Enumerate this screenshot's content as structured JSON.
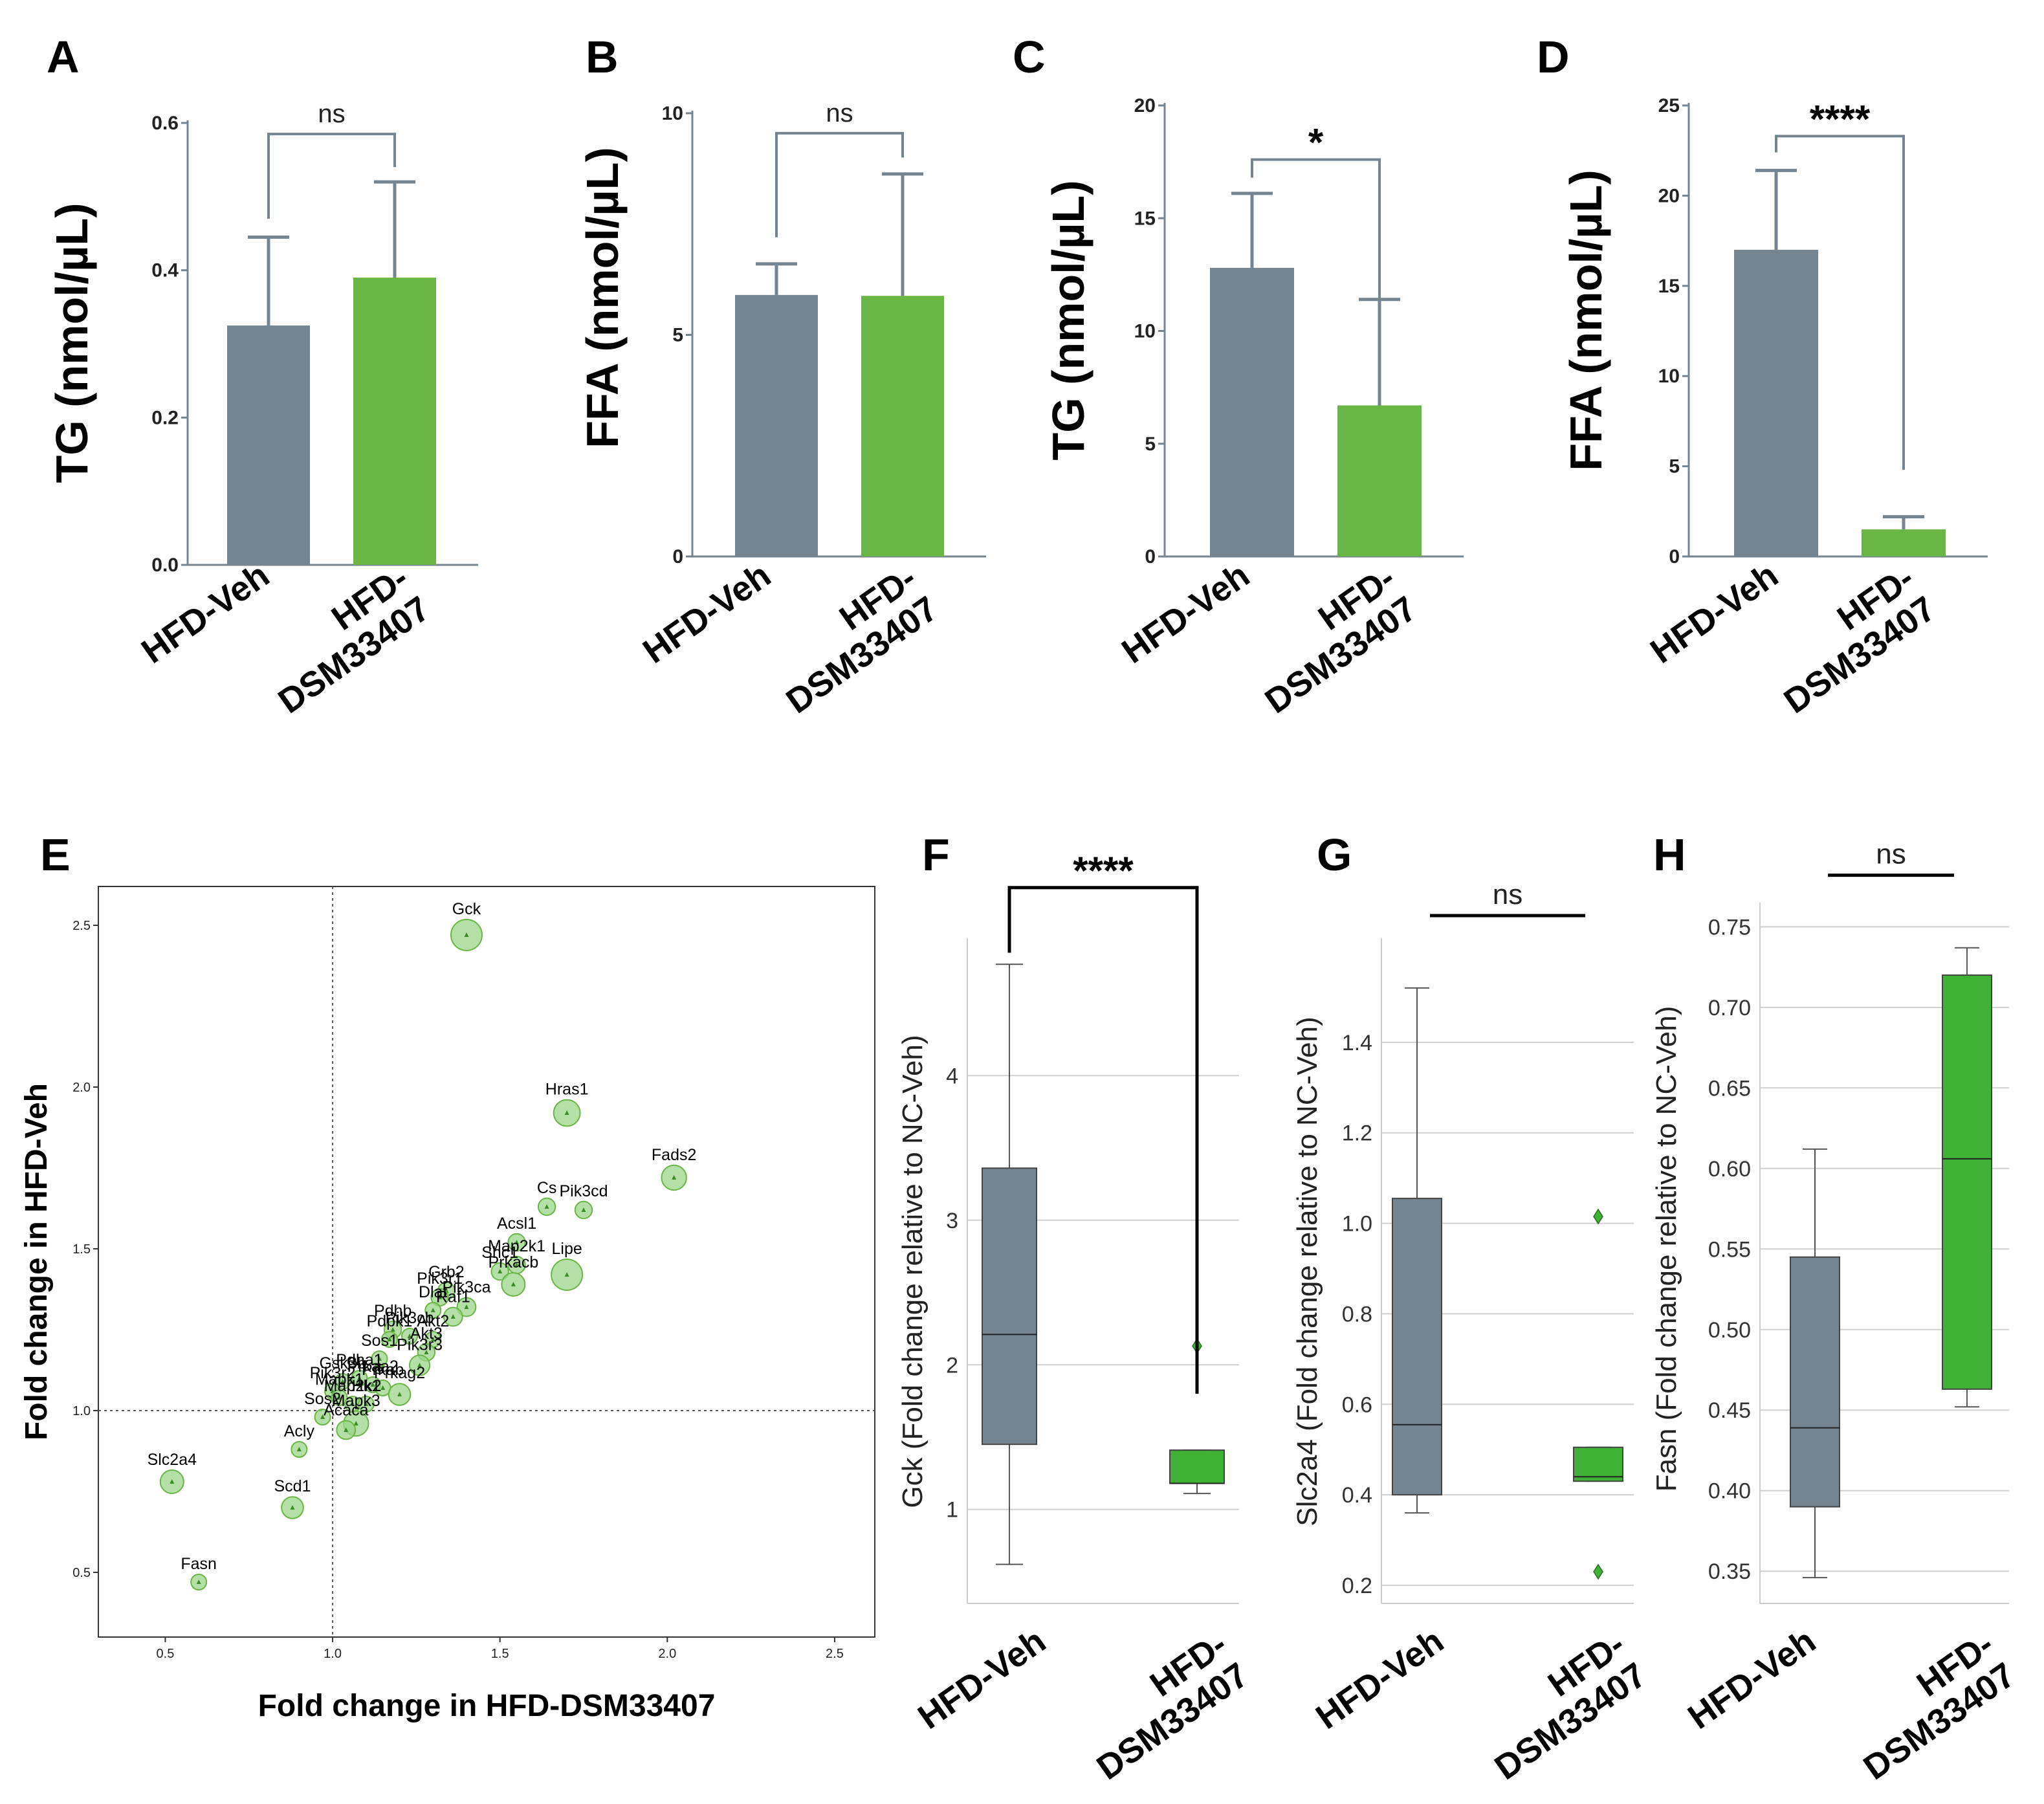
{
  "figure_colors": {
    "veh": "#748591",
    "dsm": "#6ab645",
    "dsm_box": "#3fb235",
    "error": "#748591",
    "grid": "#d0d0d0",
    "scatter_fill": "#9bd68a",
    "scatter_edge": "#6ab645"
  },
  "chart_data": [
    {
      "panel": "A",
      "type": "bar",
      "ylabel": "TG (nmol/µL)",
      "categories": [
        "HFD-Veh",
        "HFD-DSM33407"
      ],
      "category_lines": [
        [
          "HFD-Veh"
        ],
        [
          "HFD-",
          "DSM33407"
        ]
      ],
      "values": [
        0.325,
        0.39
      ],
      "errors": [
        0.12,
        0.13
      ],
      "ylim": [
        0,
        0.6
      ],
      "yticks": [
        0.0,
        0.2,
        0.4,
        0.6
      ],
      "ytick_labels": [
        "0.0",
        "0.2",
        "0.4",
        "0.6"
      ],
      "significance": "ns",
      "bracket_heights": [
        0.47,
        0.54
      ],
      "bracket_top": 0.585
    },
    {
      "panel": "B",
      "type": "bar",
      "ylabel": "FFA (nmol/µL)",
      "categories": [
        "HFD-Veh",
        "HFD-DSM33407"
      ],
      "category_lines": [
        [
          "HFD-Veh"
        ],
        [
          "HFD-",
          "DSM33407"
        ]
      ],
      "values": [
        5.9,
        5.88
      ],
      "errors": [
        0.7,
        2.75
      ],
      "ylim": [
        0,
        10
      ],
      "yticks": [
        0,
        5,
        10
      ],
      "ytick_labels": [
        "0",
        "5",
        "10"
      ],
      "significance": "ns",
      "bracket_heights": [
        7.2,
        9.0
      ],
      "bracket_top": 9.55
    },
    {
      "panel": "C",
      "type": "bar",
      "ylabel": "TG (nmol/µL)",
      "categories": [
        "HFD-Veh",
        "HFD-DSM33407"
      ],
      "category_lines": [
        [
          "HFD-Veh"
        ],
        [
          "HFD-",
          "DSM33407"
        ]
      ],
      "values": [
        12.8,
        6.7
      ],
      "errors": [
        3.3,
        4.7
      ],
      "ylim": [
        0,
        20
      ],
      "yticks": [
        0,
        5,
        10,
        15,
        20
      ],
      "ytick_labels": [
        "0",
        "5",
        "10",
        "15",
        "20"
      ],
      "significance": "*",
      "bracket_heights": [
        16.8,
        11.4
      ],
      "bracket_top": 17.6
    },
    {
      "panel": "D",
      "type": "bar",
      "ylabel": "FFA (nmol/µL)",
      "categories": [
        "HFD-Veh",
        "HFD-DSM33407"
      ],
      "category_lines": [
        [
          "HFD-Veh"
        ],
        [
          "HFD-",
          "DSM33407"
        ]
      ],
      "values": [
        17.0,
        1.5
      ],
      "errors": [
        4.4,
        0.7
      ],
      "ylim": [
        0,
        25
      ],
      "yticks": [
        0,
        5,
        10,
        15,
        20,
        25
      ],
      "ytick_labels": [
        "0",
        "5",
        "10",
        "15",
        "20",
        "25"
      ],
      "significance": "****",
      "bracket_heights": [
        22.4,
        4.8
      ],
      "bracket_top": 23.3
    },
    {
      "panel": "E",
      "type": "scatter",
      "xlabel": "Fold change in HFD-DSM33407",
      "ylabel": "Fold change in HFD-Veh",
      "xlim": [
        0.3,
        2.62
      ],
      "ylim": [
        0.3,
        2.62
      ],
      "xticks": [
        0.5,
        1.0,
        1.5,
        2.0,
        2.5
      ],
      "yticks": [
        0.5,
        1.0,
        1.5,
        2.0,
        2.5
      ],
      "tick_labels": [
        "0.5",
        "1.0",
        "1.5",
        "2.0",
        "2.5"
      ],
      "reference_lines": {
        "x": 1.0,
        "y": 1.0
      },
      "points": [
        {
          "label": "Gck",
          "x": 1.4,
          "y": 2.47,
          "size": 2.0
        },
        {
          "label": "Hras1",
          "x": 1.7,
          "y": 1.92,
          "size": 1.7
        },
        {
          "label": "Fads2",
          "x": 2.02,
          "y": 1.72,
          "size": 1.6
        },
        {
          "label": "Cs",
          "x": 1.64,
          "y": 1.63,
          "size": 1.1
        },
        {
          "label": "Pik3cd",
          "x": 1.75,
          "y": 1.62,
          "size": 1.1
        },
        {
          "label": "Acsl1",
          "x": 1.55,
          "y": 1.52,
          "size": 1.1
        },
        {
          "label": "Map2k1",
          "x": 1.55,
          "y": 1.45,
          "size": 1.1
        },
        {
          "label": "Shc1",
          "x": 1.5,
          "y": 1.43,
          "size": 1.1
        },
        {
          "label": "Lipe",
          "x": 1.7,
          "y": 1.42,
          "size": 2.0
        },
        {
          "label": "Grb2",
          "x": 1.34,
          "y": 1.37,
          "size": 1.1
        },
        {
          "label": "Prkacb",
          "x": 1.54,
          "y": 1.39,
          "size": 1.5
        },
        {
          "label": "Pik3ca",
          "x": 1.4,
          "y": 1.32,
          "size": 1.2
        },
        {
          "label": "Pik3r1",
          "x": 1.32,
          "y": 1.35,
          "size": 1.1
        },
        {
          "label": "Dlat",
          "x": 1.3,
          "y": 1.31,
          "size": 1.0
        },
        {
          "label": "Raf1",
          "x": 1.36,
          "y": 1.29,
          "size": 1.2
        },
        {
          "label": "Pdhb",
          "x": 1.18,
          "y": 1.25,
          "size": 1.1
        },
        {
          "label": "Pdpk1",
          "x": 1.17,
          "y": 1.22,
          "size": 1.0
        },
        {
          "label": "Pik3cb",
          "x": 1.23,
          "y": 1.23,
          "size": 1.0
        },
        {
          "label": "Akt2",
          "x": 1.3,
          "y": 1.22,
          "size": 1.0
        },
        {
          "label": "Akt3",
          "x": 1.28,
          "y": 1.18,
          "size": 1.1
        },
        {
          "label": "Sos1",
          "x": 1.14,
          "y": 1.16,
          "size": 1.0
        },
        {
          "label": "Pik3r3",
          "x": 1.26,
          "y": 1.14,
          "size": 1.3
        },
        {
          "label": "Gsk3b",
          "x": 1.03,
          "y": 1.09,
          "size": 1.0
        },
        {
          "label": "Pdha1",
          "x": 1.08,
          "y": 1.1,
          "size": 1.0
        },
        {
          "label": "Prkaa2",
          "x": 1.12,
          "y": 1.08,
          "size": 1.0
        },
        {
          "label": "Prkab",
          "x": 1.15,
          "y": 1.07,
          "size": 1.0
        },
        {
          "label": "Pik3r2",
          "x": 1.0,
          "y": 1.06,
          "size": 1.0
        },
        {
          "label": "Mapk1",
          "x": 1.02,
          "y": 1.04,
          "size": 1.0
        },
        {
          "label": "Prkag2",
          "x": 1.2,
          "y": 1.05,
          "size": 1.4
        },
        {
          "label": "Map2k2",
          "x": 1.06,
          "y": 1.02,
          "size": 1.0
        },
        {
          "label": "Hk1",
          "x": 1.1,
          "y": 1.02,
          "size": 1.0
        },
        {
          "label": "Mapk3",
          "x": 1.07,
          "y": 0.96,
          "size": 1.6
        },
        {
          "label": "Sos2",
          "x": 0.97,
          "y": 0.98,
          "size": 1.0
        },
        {
          "label": "Acaca",
          "x": 1.04,
          "y": 0.94,
          "size": 1.2
        },
        {
          "label": "Acly",
          "x": 0.9,
          "y": 0.88,
          "size": 1.0
        },
        {
          "label": "Slc2a4",
          "x": 0.52,
          "y": 0.78,
          "size": 1.5
        },
        {
          "label": "Scd1",
          "x": 0.88,
          "y": 0.7,
          "size": 1.4
        },
        {
          "label": "Fasn",
          "x": 0.6,
          "y": 0.47,
          "size": 1.0
        }
      ]
    },
    {
      "panel": "F",
      "type": "box",
      "ylabel": "Gck (Fold change relative to NC-Veh)",
      "categories": [
        "HFD-Veh",
        "HFD-DSM33407"
      ],
      "category_lines": [
        [
          "HFD-Veh"
        ],
        [
          "HFD-",
          "DSM33407"
        ]
      ],
      "ylim": [
        0.35,
        4.95
      ],
      "yticks": [
        1,
        2,
        3,
        4
      ],
      "ytick_labels": [
        "1",
        "2",
        "3",
        "4"
      ],
      "boxes": [
        {
          "min": 0.62,
          "q1": 1.45,
          "median": 2.21,
          "q3": 3.36,
          "max": 4.77,
          "outliers": []
        },
        {
          "min": 1.11,
          "q1": 1.18,
          "median": 1.18,
          "q3": 1.41,
          "max": 1.41,
          "outliers": [
            2.13
          ]
        }
      ],
      "significance": "****",
      "bracket_heights": [
        4.85,
        1.8
      ],
      "bracket_top": 5.3
    },
    {
      "panel": "G",
      "type": "box",
      "ylabel": "Slc2a4 (Fold change relative to NC-Veh)",
      "categories": [
        "HFD-Veh",
        "HFD-DSM33407"
      ],
      "category_lines": [
        [
          "HFD-Veh"
        ],
        [
          "HFD-",
          "DSM33407"
        ]
      ],
      "ylim": [
        0.16,
        1.63
      ],
      "yticks": [
        0.2,
        0.4,
        0.6,
        0.8,
        1.0,
        1.2,
        1.4
      ],
      "ytick_labels": [
        "0.2",
        "0.4",
        "0.6",
        "0.8",
        "1.0",
        "1.2",
        "1.4"
      ],
      "boxes": [
        {
          "min": 0.36,
          "q1": 0.4,
          "median": 0.555,
          "q3": 1.055,
          "max": 1.52,
          "outliers": []
        },
        {
          "min": 0.43,
          "q1": 0.43,
          "median": 0.44,
          "q3": 0.505,
          "max": 0.505,
          "outliers": [
            1.015,
            0.23
          ]
        }
      ],
      "significance": "ns",
      "bracket_heights": [],
      "bracket_top": 1.68
    },
    {
      "panel": "H",
      "type": "box",
      "ylabel": "Fasn (Fold change relative to NC-Veh)",
      "categories": [
        "HFD-Veh",
        "HFD-DSM33407"
      ],
      "category_lines": [
        [
          "HFD-Veh"
        ],
        [
          "HFD-",
          "DSM33407"
        ]
      ],
      "ylim": [
        0.33,
        0.765
      ],
      "yticks": [
        0.35,
        0.4,
        0.45,
        0.5,
        0.55,
        0.6,
        0.65,
        0.7,
        0.75
      ],
      "ytick_labels": [
        "0.35",
        "0.40",
        "0.45",
        "0.50",
        "0.55",
        "0.60",
        "0.65",
        "0.70",
        "0.75"
      ],
      "boxes": [
        {
          "min": 0.346,
          "q1": 0.39,
          "median": 0.439,
          "q3": 0.545,
          "max": 0.612,
          "outliers": []
        },
        {
          "min": 0.452,
          "q1": 0.463,
          "median": 0.606,
          "q3": 0.72,
          "max": 0.737,
          "outliers": []
        }
      ],
      "significance": "ns",
      "bracket_heights": [],
      "bracket_top": 0.782
    }
  ]
}
